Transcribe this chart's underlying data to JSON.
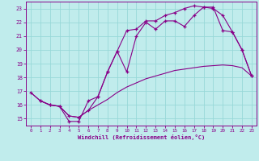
{
  "bg_color": "#c0ecec",
  "grid_color": "#98d8d8",
  "line_color": "#880088",
  "xlabel": "Windchill (Refroidissement éolien,°C)",
  "xlabel_color": "#880088",
  "tick_color": "#880088",
  "xlim": [
    -0.5,
    23.5
  ],
  "ylim": [
    14.5,
    23.5
  ],
  "yticks": [
    15,
    16,
    17,
    18,
    19,
    20,
    21,
    22,
    23
  ],
  "xticks": [
    0,
    1,
    2,
    3,
    4,
    5,
    6,
    7,
    8,
    9,
    10,
    11,
    12,
    13,
    14,
    15,
    16,
    17,
    18,
    19,
    20,
    21,
    22,
    23
  ],
  "line1_x": [
    0,
    1,
    2,
    3,
    4,
    5,
    6,
    7,
    8,
    9,
    10,
    11,
    12,
    13,
    14,
    15,
    16,
    17,
    18,
    19,
    20,
    21,
    22,
    23
  ],
  "line1_y": [
    16.9,
    16.3,
    16.0,
    15.9,
    14.8,
    14.8,
    16.3,
    16.6,
    18.4,
    19.9,
    18.4,
    21.0,
    22.0,
    21.5,
    22.1,
    22.1,
    21.7,
    22.5,
    23.1,
    23.0,
    22.5,
    21.3,
    20.0,
    18.1
  ],
  "line2_x": [
    0,
    1,
    2,
    3,
    4,
    5,
    6,
    7,
    8,
    9,
    10,
    11,
    12,
    13,
    14,
    15,
    16,
    17,
    18,
    19,
    20,
    21,
    22,
    23
  ],
  "line2_y": [
    16.9,
    16.3,
    16.0,
    15.9,
    15.2,
    15.1,
    15.6,
    16.0,
    16.4,
    16.9,
    17.3,
    17.6,
    17.9,
    18.1,
    18.3,
    18.5,
    18.6,
    18.7,
    18.8,
    18.85,
    18.9,
    18.85,
    18.7,
    18.1
  ],
  "line3_x": [
    1,
    2,
    3,
    4,
    5,
    6,
    7,
    8,
    9,
    10,
    11,
    12,
    13,
    14,
    15,
    16,
    17,
    18,
    19,
    20,
    21,
    22,
    23
  ],
  "line3_y": [
    16.3,
    16.0,
    15.9,
    15.2,
    15.1,
    15.6,
    16.6,
    18.4,
    19.9,
    21.4,
    21.5,
    22.1,
    22.1,
    22.5,
    22.7,
    23.0,
    23.2,
    23.1,
    23.1,
    21.4,
    21.3,
    20.0,
    18.1
  ]
}
